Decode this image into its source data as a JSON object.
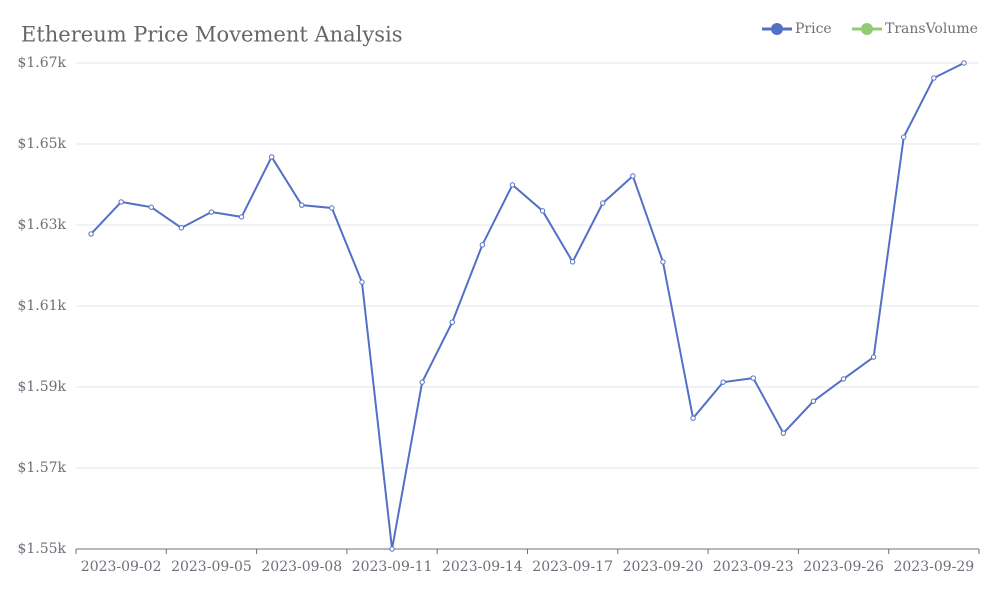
{
  "chart_data": {
    "type": "line",
    "title": "Ethereum Price Movement Analysis",
    "categories": [
      null,
      "2023-09-02",
      null,
      null,
      "2023-09-05",
      null,
      null,
      "2023-09-08",
      null,
      null,
      "2023-09-11",
      null,
      null,
      "2023-09-14",
      null,
      null,
      "2023-09-17",
      null,
      null,
      "2023-09-20",
      null,
      null,
      "2023-09-23",
      null,
      null,
      "2023-09-26",
      null,
      null,
      "2023-09-29",
      null
    ],
    "series": [
      {
        "name": "Price",
        "color": "#5470c6",
        "values": [
          1627.8,
          1635.7,
          1634.4,
          1629.3,
          1633.2,
          1632.0,
          1646.8,
          1634.9,
          1634.2,
          1615.9,
          1550,
          1591.2,
          1606.0,
          1625.1,
          1639.9,
          1633.5,
          1620.9,
          1635.4,
          1642.1,
          1620.9,
          1582.3,
          1591.2,
          1592.2,
          1578.6,
          1586.5,
          1592.0,
          1597.4,
          1651.7,
          1666.3,
          1670
        ]
      },
      {
        "name": "TransVolume",
        "color": "#91cc75",
        "values": [
          null,
          null,
          null,
          null,
          null,
          null,
          null,
          null,
          null,
          null,
          null,
          null,
          null,
          null,
          null,
          null,
          null,
          null,
          null,
          null,
          null,
          null,
          null,
          null,
          null,
          null,
          null,
          null,
          null,
          null
        ]
      }
    ],
    "ylim": [
      1550,
      1670
    ],
    "yticks": [
      {
        "value": 1550,
        "label": "$1.55k"
      },
      {
        "value": 1570,
        "label": "$1.57k"
      },
      {
        "value": 1590,
        "label": "$1.59k"
      },
      {
        "value": 1610,
        "label": "$1.61k"
      },
      {
        "value": 1630,
        "label": "$1.63k"
      },
      {
        "value": 1650,
        "label": "$1.65k"
      },
      {
        "value": 1670,
        "label": "$1.67k"
      }
    ],
    "grid": true,
    "legend": "top-right"
  }
}
